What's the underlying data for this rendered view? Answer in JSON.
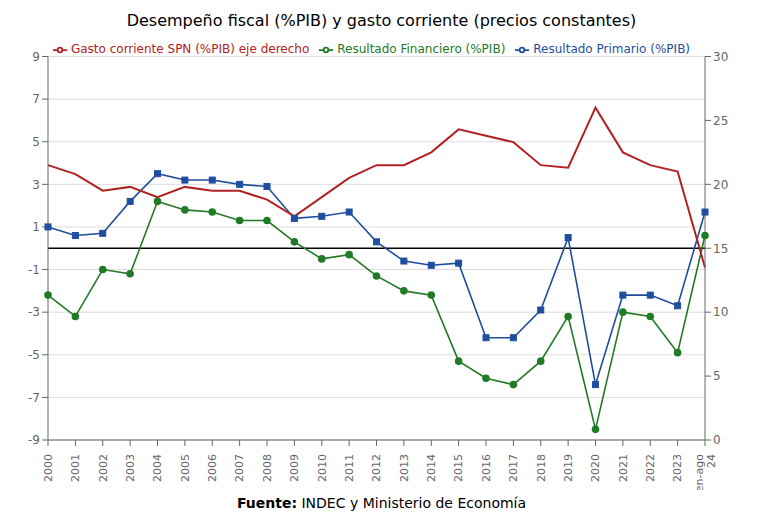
{
  "chart_data": {
    "type": "line",
    "title": "Desempeño fiscal (%PIB) y gasto corriente (precios constantes)",
    "annotations": [
      "Fuente:",
      "INDEC y Ministerio de Economía"
    ],
    "categories": [
      "2000",
      "2001",
      "2002",
      "2003",
      "2004",
      "2005",
      "2006",
      "2007",
      "2008",
      "2009",
      "2010",
      "2011",
      "2012",
      "2013",
      "2014",
      "2015",
      "2016",
      "2017",
      "2018",
      "2019",
      "2020",
      "2021",
      "2022",
      "2023",
      "en-ago\n24"
    ],
    "series": [
      {
        "name": "Resultado Primario (%PIB)",
        "color": "#1f4e9e",
        "marker": "square",
        "values": [
          1.0,
          0.6,
          0.7,
          2.2,
          3.5,
          3.2,
          3.2,
          3.0,
          2.9,
          1.4,
          1.5,
          1.7,
          0.3,
          -0.6,
          -0.8,
          -0.7,
          -4.2,
          -4.2,
          -2.9,
          0.5,
          -6.4,
          -2.2,
          -2.2,
          -2.7,
          1.7
        ]
      },
      {
        "name": "Resultado Financiero (%PIB)",
        "color": "#217a25",
        "marker": "circle",
        "values": [
          -2.2,
          -3.2,
          -1.0,
          -1.2,
          2.2,
          1.8,
          1.7,
          1.3,
          1.3,
          0.3,
          -0.5,
          -0.3,
          -1.3,
          -2.0,
          -2.2,
          -5.3,
          -6.1,
          -6.4,
          -5.3,
          -3.2,
          -8.5,
          -3.0,
          -3.2,
          -4.9,
          0.6
        ]
      },
      {
        "name": "Gasto corriente SPN (%PIB) eje derecho",
        "color": "#b22222",
        "marker": "none",
        "axis": "y2",
        "values": [
          21.5,
          20.8,
          19.5,
          19.8,
          19.0,
          19.8,
          19.5,
          19.5,
          18.8,
          17.5,
          19.0,
          20.5,
          21.5,
          21.5,
          22.5,
          24.3,
          23.8,
          23.3,
          21.5,
          21.3,
          26.0,
          22.5,
          21.5,
          21.0,
          13.5
        ]
      }
    ],
    "ylim": [
      -9,
      9
    ],
    "yticks": [
      -9,
      -7,
      -5,
      -3,
      -1,
      1,
      3,
      5,
      7,
      9
    ],
    "y2lim": [
      0,
      30
    ],
    "y2ticks": [
      0,
      5,
      10,
      15,
      20,
      25,
      30
    ],
    "grid": true,
    "legend": "top"
  }
}
